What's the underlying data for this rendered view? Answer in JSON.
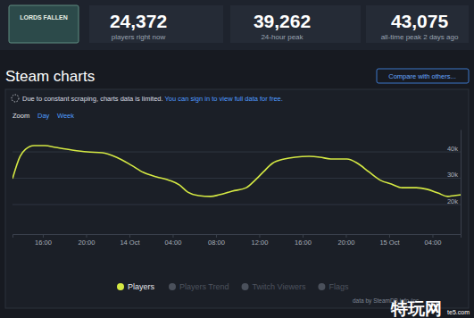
{
  "header": {
    "logo_text": "LORDS FALLEN",
    "stats": [
      {
        "value": "24,372",
        "label": "players right now"
      },
      {
        "value": "39,262",
        "label": "24-hour peak"
      },
      {
        "value": "43,075",
        "label": "all-time peak 2 days ago"
      }
    ]
  },
  "section_title": "Steam charts",
  "compare_button": "Compare with others...",
  "notice": {
    "text": "Due to constant scraping, charts data is limited.",
    "link": "You can sign in to view full data for free."
  },
  "zoom": {
    "label": "Zoom",
    "options": [
      "Day",
      "Week"
    ]
  },
  "legend_inactive": [
    "Players Trend",
    "Twitch Viewers",
    "Flags"
  ],
  "credit": "data by SteamDB.info (pc",
  "watermark": {
    "text": "特玩网",
    "site": "te5.com"
  },
  "chart_data": {
    "type": "line",
    "legend": "bottom",
    "grid": true,
    "x": [
      13.2,
      13.9,
      14.4,
      15.2,
      16.2,
      17.2,
      18.7,
      20.1,
      21.5,
      22.8,
      24.2,
      25.3,
      26.5,
      27.7,
      28.6,
      29.4,
      30.4,
      31.5,
      32.3,
      33.5,
      34.8,
      35.6,
      36.4,
      37.2,
      38.3,
      39.3,
      40.6,
      41.6,
      42.6,
      44.1,
      45.1,
      46.1,
      47.2,
      48.2,
      49.2,
      50.5,
      51.5,
      52.5,
      53.4,
      54.0,
      54.6
    ],
    "series": [
      {
        "name": "Players",
        "color": "#d4e843",
        "line_style": "solid",
        "values": [
          29800,
          38300,
          41000,
          42400,
          42400,
          41700,
          40700,
          40000,
          39700,
          38000,
          34900,
          32200,
          30500,
          29200,
          27500,
          24700,
          23400,
          23100,
          23700,
          25100,
          26400,
          29200,
          32500,
          35600,
          37300,
          38000,
          38300,
          38000,
          37300,
          37300,
          35600,
          32500,
          29200,
          27800,
          26400,
          26400,
          25800,
          24400,
          23100,
          23400,
          23700
        ]
      }
    ],
    "xlim": [
      13.2,
      54.6
    ],
    "xticks": [
      {
        "value": 16,
        "label": "16:00"
      },
      {
        "value": 20,
        "label": "20:00"
      },
      {
        "value": 24,
        "label": "14 Oct"
      },
      {
        "value": 28,
        "label": "04:00"
      },
      {
        "value": 32,
        "label": "08:00"
      },
      {
        "value": 36,
        "label": "12:00"
      },
      {
        "value": 40,
        "label": "16:00"
      },
      {
        "value": 44,
        "label": "20:00"
      },
      {
        "value": 48,
        "label": "15 Oct"
      },
      {
        "value": 52,
        "label": "04:00"
      }
    ],
    "ylim": [
      8800,
      48500
    ],
    "yticks": [
      {
        "value": 20000,
        "label": "20k"
      },
      {
        "value": 30000,
        "label": "30k"
      },
      {
        "value": 40000,
        "label": "40k"
      }
    ]
  }
}
